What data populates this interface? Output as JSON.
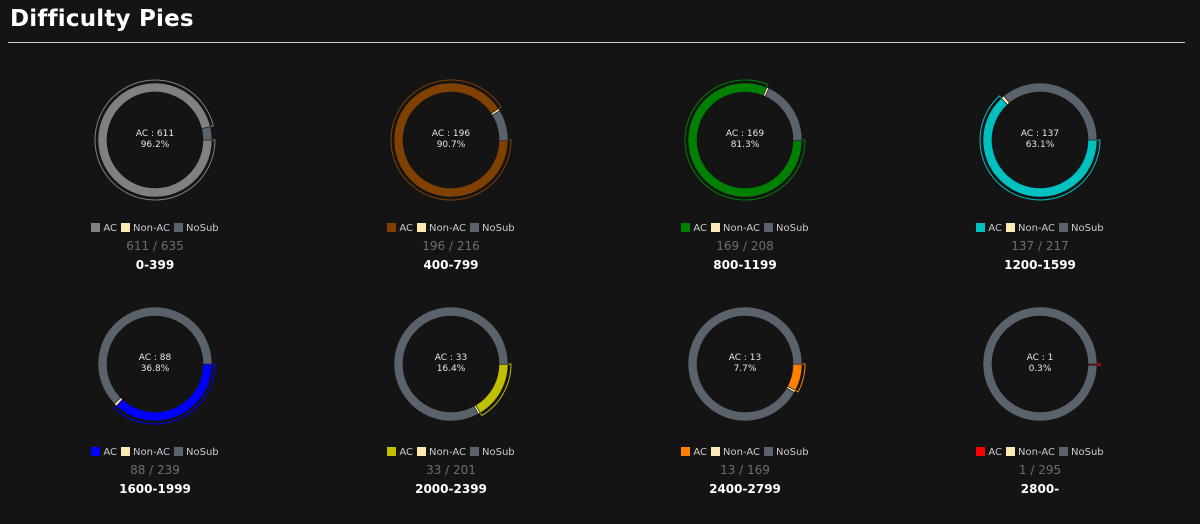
{
  "page": {
    "title": "Difficulty Pies"
  },
  "legend_labels": {
    "ac": "AC",
    "nonac": "Non-AC",
    "nosub": "NoSub"
  },
  "colors": {
    "nonac": "#fde9b6",
    "nosub": "#5a626b",
    "background": "#141414"
  },
  "chart_data": [
    {
      "type": "pie",
      "range": "0-399",
      "ac": 611,
      "nonac": 0,
      "total": 635,
      "ac_label": "AC : 611",
      "percent_label": "96.2%",
      "ratio_label": "611 / 635",
      "ac_color": "#808080"
    },
    {
      "type": "pie",
      "range": "400-799",
      "ac": 196,
      "nonac": 1,
      "total": 216,
      "ac_label": "AC : 196",
      "percent_label": "90.7%",
      "ratio_label": "196 / 216",
      "ac_color": "#804000"
    },
    {
      "type": "pie",
      "range": "800-1199",
      "ac": 169,
      "nonac": 1,
      "total": 208,
      "ac_label": "AC : 169",
      "percent_label": "81.3%",
      "ratio_label": "169 / 208",
      "ac_color": "#008000"
    },
    {
      "type": "pie",
      "range": "1200-1599",
      "ac": 137,
      "nonac": 2,
      "total": 217,
      "ac_label": "AC : 137",
      "percent_label": "63.1%",
      "ratio_label": "137 / 217",
      "ac_color": "#00c0c0"
    },
    {
      "type": "pie",
      "range": "1600-1999",
      "ac": 88,
      "nonac": 2,
      "total": 239,
      "ac_label": "AC : 88",
      "percent_label": "36.8%",
      "ratio_label": "88 / 239",
      "ac_color": "#0000ff"
    },
    {
      "type": "pie",
      "range": "2000-2399",
      "ac": 33,
      "nonac": 1,
      "total": 201,
      "ac_label": "AC : 33",
      "percent_label": "16.4%",
      "ratio_label": "33 / 201",
      "ac_color": "#c0c000"
    },
    {
      "type": "pie",
      "range": "2400-2799",
      "ac": 13,
      "nonac": 1,
      "total": 169,
      "ac_label": "AC : 13",
      "percent_label": "7.7%",
      "ratio_label": "13 / 169",
      "ac_color": "#ff8000"
    },
    {
      "type": "pie",
      "range": "2800-",
      "ac": 1,
      "nonac": 0,
      "total": 295,
      "ac_label": "AC : 1",
      "percent_label": "0.3%",
      "ratio_label": "1 / 295",
      "ac_color": "#ff0000"
    }
  ]
}
